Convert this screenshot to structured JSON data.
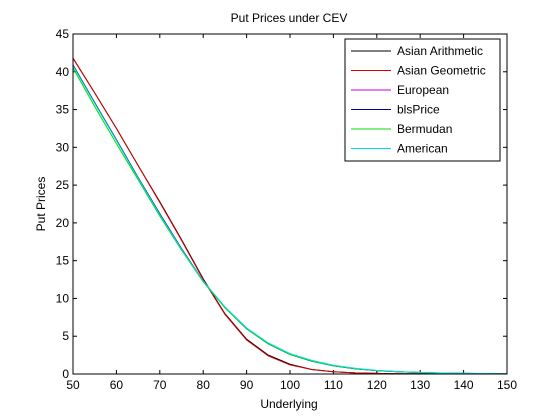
{
  "chart_data": {
    "type": "line",
    "title": "Put Prices under CEV",
    "xlabel": "Underlying",
    "ylabel": "Put Prices",
    "xlim": [
      50,
      150
    ],
    "ylim": [
      0,
      45
    ],
    "xticks": [
      50,
      60,
      70,
      80,
      90,
      100,
      110,
      120,
      130,
      140,
      150
    ],
    "yticks": [
      0,
      5,
      10,
      15,
      20,
      25,
      30,
      35,
      40,
      45
    ],
    "grid": false,
    "legend_position": "top-right",
    "series": [
      {
        "name": "Asian Arithmetic",
        "color": "#000000",
        "x": [
          50,
          55,
          60,
          65,
          70,
          75,
          80,
          85,
          90,
          95,
          100,
          105,
          110,
          115,
          120,
          125,
          130,
          135,
          140,
          145,
          150
        ],
        "y": [
          41.8,
          37.2,
          32.5,
          27.6,
          22.8,
          17.8,
          12.6,
          8.0,
          4.6,
          2.5,
          1.3,
          0.6,
          0.3,
          0.15,
          0.08,
          0.04,
          0.02,
          0.01,
          0.0,
          0.0,
          0.0
        ]
      },
      {
        "name": "Asian Geometric",
        "color": "#d40000",
        "x": [
          50,
          55,
          60,
          65,
          70,
          75,
          80,
          85,
          90,
          95,
          100,
          105,
          110,
          115,
          120,
          125,
          130,
          135,
          140,
          145,
          150
        ],
        "y": [
          41.8,
          37.2,
          32.5,
          27.6,
          22.7,
          17.7,
          12.5,
          7.9,
          4.5,
          2.4,
          1.2,
          0.6,
          0.3,
          0.15,
          0.08,
          0.04,
          0.02,
          0.01,
          0.0,
          0.0,
          0.0
        ]
      },
      {
        "name": "European",
        "color": "#cc00cc",
        "x": [
          50,
          55,
          60,
          65,
          70,
          75,
          80,
          85,
          90,
          95,
          100,
          105,
          110,
          115,
          120,
          125,
          130,
          135,
          140,
          145,
          150
        ],
        "y": [
          40.9,
          35.9,
          31.0,
          26.0,
          21.2,
          16.6,
          12.3,
          8.8,
          6.0,
          4.0,
          2.6,
          1.7,
          1.1,
          0.7,
          0.45,
          0.3,
          0.2,
          0.12,
          0.08,
          0.05,
          0.03
        ]
      },
      {
        "name": "blsPrice",
        "color": "#000099",
        "x": [
          50,
          55,
          60,
          65,
          70,
          75,
          80,
          85,
          90,
          95,
          100,
          105,
          110,
          115,
          120,
          125,
          130,
          135,
          140,
          145,
          150
        ],
        "y": [
          40.9,
          35.9,
          31.0,
          26.0,
          21.2,
          16.6,
          12.3,
          8.8,
          6.0,
          4.0,
          2.6,
          1.7,
          1.1,
          0.7,
          0.45,
          0.3,
          0.2,
          0.12,
          0.08,
          0.05,
          0.03
        ]
      },
      {
        "name": "Bermudan",
        "color": "#00dd00",
        "x": [
          50,
          55,
          60,
          65,
          70,
          75,
          80,
          85,
          90,
          95,
          100,
          105,
          110,
          115,
          120,
          125,
          130,
          135,
          140,
          145,
          150
        ],
        "y": [
          40.5,
          35.4,
          30.5,
          25.7,
          20.9,
          16.4,
          12.2,
          8.8,
          6.0,
          4.0,
          2.6,
          1.7,
          1.1,
          0.7,
          0.45,
          0.3,
          0.2,
          0.12,
          0.08,
          0.05,
          0.03
        ]
      },
      {
        "name": "American",
        "color": "#00dddd",
        "x": [
          50,
          55,
          60,
          65,
          70,
          75,
          80,
          85,
          90,
          95,
          100,
          105,
          110,
          115,
          120,
          125,
          130,
          135,
          140,
          145,
          150
        ],
        "y": [
          40.8,
          35.8,
          30.9,
          25.9,
          21.1,
          16.5,
          12.3,
          8.9,
          6.1,
          4.1,
          2.7,
          1.8,
          1.15,
          0.75,
          0.48,
          0.32,
          0.21,
          0.13,
          0.09,
          0.06,
          0.04
        ]
      }
    ]
  }
}
